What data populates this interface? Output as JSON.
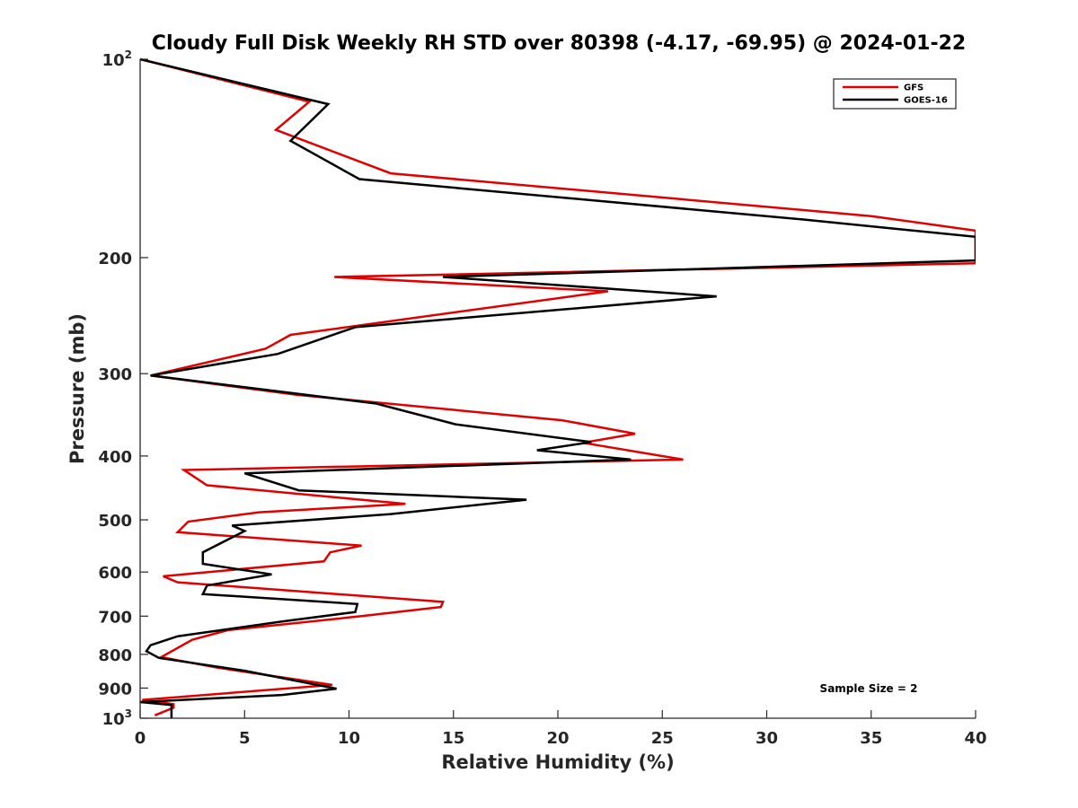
{
  "chart_data": {
    "type": "line",
    "title": "Cloudy Full Disk Weekly RH STD over 80398 (-4.17, -69.95) @ 2024-01-22",
    "xlabel": "Relative Humidity (%)",
    "ylabel": "Pressure (mb)",
    "xlim": [
      0,
      40
    ],
    "ylim": [
      100,
      1000
    ],
    "yscale": "log",
    "yreverse": true,
    "grid": false,
    "legend_position": "top-right",
    "xticks": [
      0,
      5,
      10,
      15,
      20,
      25,
      30,
      35,
      40
    ],
    "yticks": [
      {
        "value": 100,
        "base": "10",
        "exp": "2"
      },
      {
        "value": 200,
        "label": "200"
      },
      {
        "value": 300,
        "label": "300"
      },
      {
        "value": 400,
        "label": "400"
      },
      {
        "value": 500,
        "label": "500"
      },
      {
        "value": 600,
        "label": "600"
      },
      {
        "value": 700,
        "label": "700"
      },
      {
        "value": 800,
        "label": "800"
      },
      {
        "value": 900,
        "label": "900"
      },
      {
        "value": 1000,
        "base": "10",
        "exp": "3"
      }
    ],
    "annotation": "Sample Size = 2",
    "series": [
      {
        "name": "GFS",
        "color": "#e00000",
        "points": [
          [
            0.0,
            100
          ],
          [
            8.1,
            116
          ],
          [
            6.5,
            128
          ],
          [
            12.0,
            149
          ],
          [
            35.0,
            173
          ],
          [
            40.0,
            182
          ],
          [
            40.0,
            204
          ],
          [
            9.3,
            214
          ],
          [
            22.4,
            225
          ],
          [
            7.2,
            262
          ],
          [
            6.0,
            275
          ],
          [
            0.5,
            302
          ],
          [
            7.5,
            323
          ],
          [
            20.2,
            353
          ],
          [
            23.7,
            370
          ],
          [
            21.2,
            382
          ],
          [
            26.0,
            405
          ],
          [
            2.1,
            420
          ],
          [
            3.2,
            443
          ],
          [
            12.7,
            473
          ],
          [
            5.7,
            487
          ],
          [
            2.3,
            503
          ],
          [
            1.8,
            522
          ],
          [
            10.6,
            547
          ],
          [
            9.1,
            560
          ],
          [
            8.8,
            578
          ],
          [
            1.1,
            609
          ],
          [
            1.8,
            622
          ],
          [
            14.5,
            666
          ],
          [
            14.4,
            678
          ],
          [
            10.6,
            700
          ],
          [
            4.2,
            735
          ],
          [
            2.5,
            760
          ],
          [
            1.0,
            808
          ],
          [
            3.7,
            838
          ],
          [
            9.2,
            890
          ],
          [
            0.1,
            938
          ],
          [
            1.6,
            952
          ],
          [
            1.6,
            964
          ],
          [
            0.7,
            990
          ]
        ]
      },
      {
        "name": "GOES-16",
        "color": "#000000",
        "points": [
          [
            0.0,
            100
          ],
          [
            9.0,
            117
          ],
          [
            7.2,
            133
          ],
          [
            10.5,
            152
          ],
          [
            31.7,
            175
          ],
          [
            40.0,
            186
          ],
          [
            40.0,
            202
          ],
          [
            14.5,
            214
          ],
          [
            27.6,
            229
          ],
          [
            10.3,
            255
          ],
          [
            6.6,
            280
          ],
          [
            0.5,
            302
          ],
          [
            11.3,
            333
          ],
          [
            15.1,
            358
          ],
          [
            21.6,
            381
          ],
          [
            19.0,
            392
          ],
          [
            23.5,
            405
          ],
          [
            5.0,
            425
          ],
          [
            7.6,
            451
          ],
          [
            18.5,
            466
          ],
          [
            12.0,
            490
          ],
          [
            4.4,
            510
          ],
          [
            5.0,
            520
          ],
          [
            3.0,
            560
          ],
          [
            3.0,
            583
          ],
          [
            6.3,
            605
          ],
          [
            3.2,
            629
          ],
          [
            3.0,
            648
          ],
          [
            10.4,
            671
          ],
          [
            10.3,
            690
          ],
          [
            6.8,
            713
          ],
          [
            1.8,
            751
          ],
          [
            0.5,
            775
          ],
          [
            0.3,
            791
          ],
          [
            0.9,
            810
          ],
          [
            5.0,
            847
          ],
          [
            9.4,
            902
          ],
          [
            6.8,
            922
          ],
          [
            0.0,
            945
          ],
          [
            1.5,
            955
          ],
          [
            1.5,
            1000
          ]
        ]
      }
    ]
  }
}
